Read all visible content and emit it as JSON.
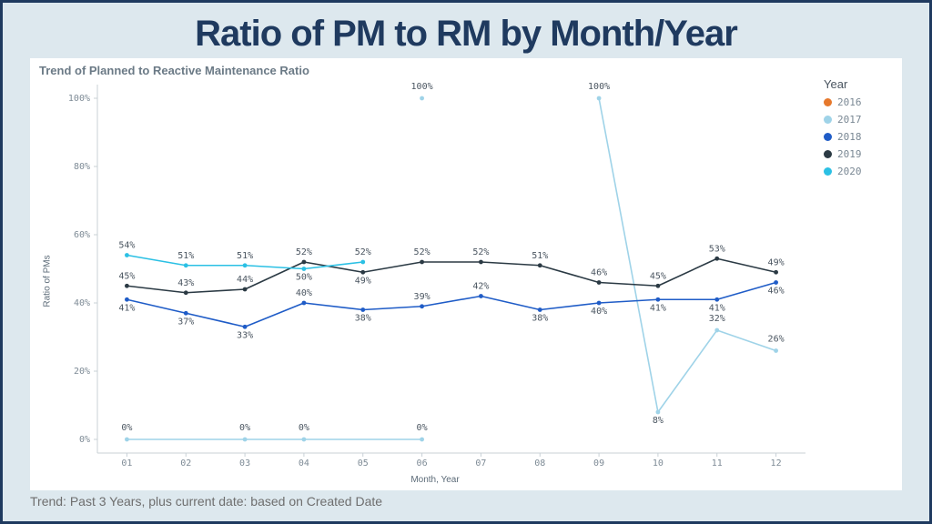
{
  "page": {
    "title": "Ratio of PM to RM by Month/Year",
    "title_color": "#1f3a5f",
    "title_fontsize": 40,
    "outer_bg": "#dde8ee",
    "outer_border": "#1f3a5f",
    "footer": "Trend: Past 3 Years, plus current date: based on Created Date",
    "footer_fontsize": 14
  },
  "chart": {
    "subtitle": "Trend of Planned to Reactive Maintenance Ratio",
    "subtitle_color": "#6b7a86",
    "subtitle_fontsize": 13,
    "background_color": "#ffffff",
    "ylabel": "Ratio of PMs",
    "xlabel": "Month, Year",
    "axis_label_fontsize": 10,
    "xlim": [
      0.5,
      12.5
    ],
    "ylim": [
      -4,
      104
    ],
    "yticks": [
      0,
      20,
      40,
      60,
      80,
      100
    ],
    "ytick_labels": [
      "0%",
      "20%",
      "40%",
      "60%",
      "80%",
      "100%"
    ],
    "xticks": [
      1,
      2,
      3,
      4,
      5,
      6,
      7,
      8,
      9,
      10,
      11,
      12
    ],
    "xtick_labels": [
      "01",
      "02",
      "03",
      "04",
      "05",
      "06",
      "07",
      "08",
      "09",
      "10",
      "11",
      "12"
    ],
    "tick_fontsize": 10,
    "tick_color": "#7e8b96",
    "axis_line_color": "#c8d0d6",
    "data_label_fontsize": 10,
    "data_label_color": "#4a5560",
    "marker_radius": 2.4,
    "line_width": 1.6,
    "legend_title": "Year",
    "legend_title_fontsize": 13,
    "legend_item_fontsize": 11,
    "series": [
      {
        "name": "2016",
        "color": "#e6782c",
        "points": []
      },
      {
        "name": "2017",
        "color": "#9fd3e8",
        "points": [
          {
            "x": 1,
            "y": 0,
            "label": "0%",
            "ly": -10
          },
          {
            "x": 3,
            "y": 0,
            "label": "0%",
            "ly": -10
          },
          {
            "x": 4,
            "y": 0,
            "label": "0%",
            "ly": -10
          },
          {
            "x": 6,
            "y": 0,
            "label": "0%",
            "ly": -10
          },
          {
            "x": 6,
            "y": 100,
            "label": "100%",
            "ly": -10,
            "isolated": true
          },
          {
            "x": 9,
            "y": 100,
            "label": "100%",
            "ly": -10,
            "isolated": true
          },
          {
            "x": 10,
            "y": 8,
            "label": "8%",
            "ly": 12
          },
          {
            "x": 11,
            "y": 32,
            "label": "32%",
            "ly": -10
          },
          {
            "x": 12,
            "y": 26,
            "label": "26%",
            "ly": -10
          }
        ],
        "segments": [
          [
            0,
            1,
            2,
            3
          ],
          [
            5,
            6,
            7,
            8
          ]
        ]
      },
      {
        "name": "2018",
        "color": "#1f5cc7",
        "points": [
          {
            "x": 1,
            "y": 41,
            "label": "41%",
            "ly": 12
          },
          {
            "x": 2,
            "y": 37,
            "label": "37%",
            "ly": 12
          },
          {
            "x": 3,
            "y": 33,
            "label": "33%",
            "ly": 12
          },
          {
            "x": 4,
            "y": 40,
            "label": "40%",
            "ly": -8
          },
          {
            "x": 5,
            "y": 38,
            "label": "38%",
            "ly": 12
          },
          {
            "x": 6,
            "y": 39,
            "label": "39%",
            "ly": -8
          },
          {
            "x": 7,
            "y": 42,
            "label": "42%",
            "ly": -8
          },
          {
            "x": 8,
            "y": 38,
            "label": "38%",
            "ly": 12
          },
          {
            "x": 9,
            "y": 40,
            "label": "40%",
            "ly": 12
          },
          {
            "x": 10,
            "y": 41,
            "label": "41%",
            "ly": 12
          },
          {
            "x": 11,
            "y": 41,
            "label": "41%",
            "ly": 12
          },
          {
            "x": 12,
            "y": 46,
            "label": "46%",
            "ly": 12
          }
        ],
        "segments": [
          [
            0,
            1,
            2,
            3,
            4,
            5,
            6,
            7,
            8,
            9,
            10,
            11
          ]
        ]
      },
      {
        "name": "2019",
        "color": "#2b3a44",
        "points": [
          {
            "x": 1,
            "y": 45,
            "label": "45%",
            "ly": -8
          },
          {
            "x": 2,
            "y": 43,
            "label": "43%",
            "ly": -8
          },
          {
            "x": 3,
            "y": 44,
            "label": "44%",
            "ly": -8
          },
          {
            "x": 4,
            "y": 52,
            "label": "52%",
            "ly": -8
          },
          {
            "x": 5,
            "y": 49,
            "label": "49%",
            "ly": 12
          },
          {
            "x": 6,
            "y": 52,
            "label": "52%",
            "ly": -8
          },
          {
            "x": 7,
            "y": 52,
            "label": "52%",
            "ly": -8
          },
          {
            "x": 8,
            "y": 51,
            "label": "51%",
            "ly": -8
          },
          {
            "x": 9,
            "y": 46,
            "label": "46%",
            "ly": -8
          },
          {
            "x": 10,
            "y": 45,
            "label": "45%",
            "ly": -8
          },
          {
            "x": 11,
            "y": 53,
            "label": "53%",
            "ly": -8
          },
          {
            "x": 12,
            "y": 49,
            "label": "49%",
            "ly": -8
          }
        ],
        "segments": [
          [
            0,
            1,
            2,
            3,
            4,
            5,
            6,
            7,
            8,
            9,
            10,
            11
          ]
        ]
      },
      {
        "name": "2020",
        "color": "#2bc0e4",
        "points": [
          {
            "x": 1,
            "y": 54,
            "label": "54%",
            "ly": -8
          },
          {
            "x": 2,
            "y": 51,
            "label": "51%",
            "ly": -8
          },
          {
            "x": 3,
            "y": 51,
            "label": "51%",
            "ly": -8
          },
          {
            "x": 4,
            "y": 50,
            "label": "50%",
            "ly": 12
          },
          {
            "x": 5,
            "y": 52,
            "label": "52%",
            "ly": -8
          }
        ],
        "segments": [
          [
            0,
            1,
            2,
            3,
            4
          ]
        ]
      }
    ]
  }
}
